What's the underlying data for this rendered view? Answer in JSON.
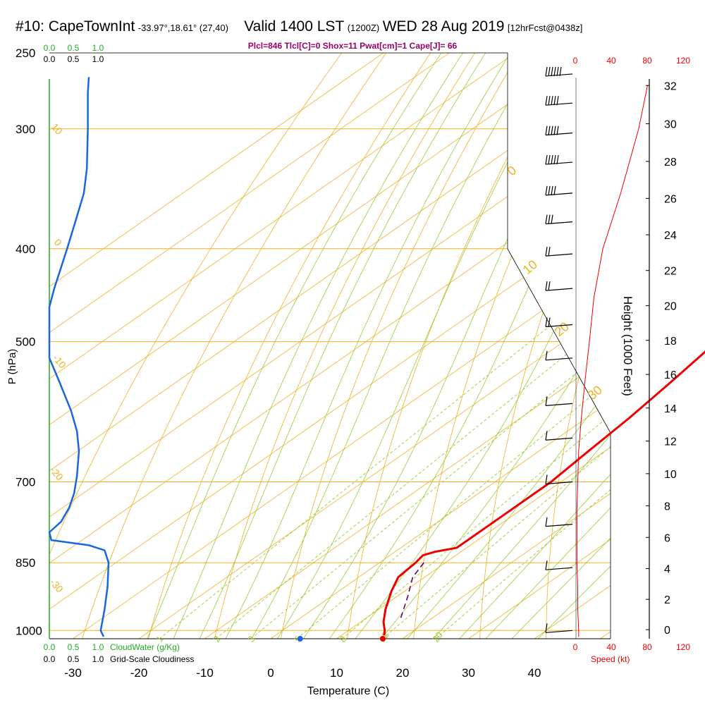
{
  "header": {
    "station": "#10: CapeTownInt",
    "coords": "-33.97°,18.61° (27,40)",
    "valid": "Valid 1400 LST",
    "utc": "(1200Z)",
    "date": "WED 28 Aug 2019",
    "fcst": "[12hrFcst@0438z]"
  },
  "info_line": "Plcl=846 Tlcl[C]=0 Shox=11 Pwat[cm]=1 Cape[J]= 66",
  "colors": {
    "isotherm": "#f0b020",
    "dry_adiabat": "#f0b020",
    "moist_adiabat": "#99cc33",
    "mixing_ratio": "#99cc33",
    "temperature": "#ee0000",
    "parcel": "#660066",
    "cloud_water": "#1a66dd",
    "cloud_axis": "#22aa22",
    "wind_speed": "#ee0000"
  },
  "chart_data": {
    "type": "line",
    "title": "",
    "xlabel": "Temperature (C)",
    "ylabel": "P (hPa)",
    "right_axis_label": "Height (1000 Feet)",
    "x_ticks": [
      "-30",
      "-20",
      "-10",
      "0",
      "10",
      "20",
      "30",
      "40"
    ],
    "y_ticks": [
      "250",
      "300",
      "400",
      "500",
      "700",
      "850",
      "1000"
    ],
    "height_ticks": [
      "0",
      "2",
      "4",
      "6",
      "8",
      "10",
      "12",
      "14",
      "16",
      "18",
      "20",
      "22",
      "24",
      "26",
      "28",
      "30",
      "32"
    ],
    "speed_ticks": [
      "0",
      "40",
      "80",
      "120"
    ],
    "speed_label": "Speed (kt)",
    "cloudwater_ticks": [
      "0.0",
      "0.5",
      "1.0"
    ],
    "cloudwater_label": "CloudWater (g/Kg)",
    "cloudiness_ticks": [
      "0.0",
      "0.5",
      "1.0"
    ],
    "cloudiness_label": "Grid-Scale Cloudiness",
    "dry_adiabat_labels": [
      "10",
      "0",
      "-10",
      "-20",
      "-30"
    ],
    "moist_adiabat_labels": [
      "0",
      "10",
      "20",
      "30"
    ],
    "mixing_ratio_labels": [
      "1",
      "2",
      "3",
      "5",
      "8",
      "12",
      "20"
    ],
    "series": [
      {
        "name": "temperature",
        "points": [
          [
            16.5,
            1012
          ],
          [
            15.5,
            1000
          ],
          [
            13.5,
            980
          ],
          [
            11,
            950
          ],
          [
            8,
            910
          ],
          [
            6,
            880
          ],
          [
            5.5,
            850
          ],
          [
            5,
            835
          ],
          [
            6,
            828
          ],
          [
            8.5,
            820
          ],
          [
            8.5,
            775
          ],
          [
            8.5,
            750
          ],
          [
            8.5,
            700
          ],
          [
            7.5,
            650
          ],
          [
            6.5,
            600
          ],
          [
            5,
            550
          ],
          [
            3.2,
            500
          ],
          [
            2.5,
            450
          ],
          [
            1,
            400
          ],
          [
            -3,
            350
          ],
          [
            -9.5,
            300
          ],
          [
            -13,
            270
          ],
          [
            -13.5,
            263
          ]
        ]
      },
      {
        "name": "parcel",
        "points": [
          [
            15.2,
            970
          ],
          [
            11.5,
            920
          ],
          [
            8.2,
            880
          ],
          [
            6.5,
            845
          ]
        ]
      },
      {
        "name": "surface_temperature",
        "points": [
          [
            17,
            1015
          ]
        ]
      },
      {
        "name": "surface_dewpoint",
        "points": [
          [
            5,
            1015
          ]
        ]
      },
      {
        "name": "cloud_water_profile",
        "points": [
          [
            0.55,
            1015
          ],
          [
            0.52,
            1000
          ],
          [
            0.56,
            950
          ],
          [
            0.59,
            900
          ],
          [
            0.6,
            850
          ],
          [
            0.56,
            825
          ],
          [
            0.4,
            815
          ],
          [
            0.02,
            805
          ],
          [
            0.0,
            790
          ],
          [
            0.12,
            770
          ],
          [
            0.2,
            745
          ],
          [
            0.25,
            720
          ],
          [
            0.28,
            690
          ],
          [
            0.3,
            650
          ],
          [
            0.28,
            620
          ],
          [
            0.22,
            590
          ],
          [
            0.1,
            550
          ],
          [
            0.0,
            520
          ],
          [
            0.0,
            460
          ],
          [
            0.05,
            440
          ],
          [
            0.18,
            400
          ],
          [
            0.28,
            370
          ],
          [
            0.35,
            350
          ],
          [
            0.38,
            330
          ],
          [
            0.39,
            300
          ],
          [
            0.39,
            275
          ],
          [
            0.4,
            265
          ]
        ]
      },
      {
        "name": "wind_speed",
        "points": [
          [
            3,
            1015
          ],
          [
            3,
            1000
          ],
          [
            2,
            950
          ],
          [
            2,
            900
          ],
          [
            1,
            850
          ],
          [
            1,
            800
          ],
          [
            1,
            750
          ],
          [
            2,
            700
          ],
          [
            3,
            650
          ],
          [
            6,
            600
          ],
          [
            10,
            550
          ],
          [
            15,
            500
          ],
          [
            20,
            450
          ],
          [
            30,
            400
          ],
          [
            50,
            350
          ],
          [
            70,
            300
          ],
          [
            80,
            270
          ]
        ]
      }
    ],
    "wind_barbs": [
      {
        "pressure": 263,
        "speed_kt": 55
      },
      {
        "pressure": 282,
        "speed_kt": 50
      },
      {
        "pressure": 303,
        "speed_kt": 45
      },
      {
        "pressure": 325,
        "speed_kt": 45
      },
      {
        "pressure": 350,
        "speed_kt": 40
      },
      {
        "pressure": 375,
        "speed_kt": 25
      },
      {
        "pressure": 405,
        "speed_kt": 20
      },
      {
        "pressure": 440,
        "speed_kt": 15
      },
      {
        "pressure": 480,
        "speed_kt": 15
      },
      {
        "pressure": 520,
        "speed_kt": 10
      },
      {
        "pressure": 580,
        "speed_kt": 10
      },
      {
        "pressure": 630,
        "speed_kt": 10
      },
      {
        "pressure": 700,
        "speed_kt": 10
      },
      {
        "pressure": 775,
        "speed_kt": 10
      },
      {
        "pressure": 860,
        "speed_kt": 10
      },
      {
        "pressure": 1000,
        "speed_kt": 5
      }
    ],
    "xlim": [
      -35,
      46
    ],
    "ylim": [
      1020,
      250
    ],
    "grid": true
  }
}
